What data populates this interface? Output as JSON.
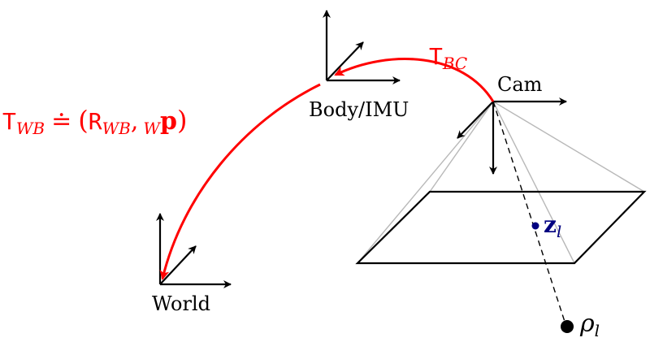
{
  "frames": {
    "world": "World",
    "body": "Body/IMU",
    "cam": "Cam"
  },
  "transforms": {
    "t_bc": {
      "main": "T",
      "sub": "BC"
    },
    "t_wb": {
      "main": "T",
      "sub": "WB",
      "dot_eq": "≐",
      "open": "(",
      "r_main": "R",
      "r_sub": "WB",
      "comma": ",",
      "p_sub": "W",
      "p_main": "p",
      "close": ")"
    }
  },
  "observation": {
    "main": "z",
    "sub": "l"
  },
  "landmark": {
    "main": "ρ",
    "sub": "l"
  },
  "colors": {
    "transform": "#ff0000",
    "observation": "#000080",
    "axes": "#000000",
    "frustum_edge": "#b8b8b8"
  }
}
